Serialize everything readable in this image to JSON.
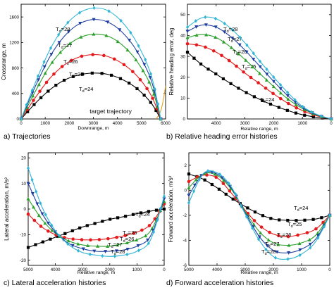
{
  "colors": {
    "Tf=24": "#000000",
    "Tf=25": "#e41a1c",
    "Tf=26": "#2ca02c",
    "Tf=27": "#1f3fa0",
    "Tf=28": "#33b5d6",
    "target": "#e6a11a"
  },
  "chart_data": [
    {
      "type": "line",
      "caption": "a) Trajectories",
      "xlabel": "Downrange, m",
      "ylabel": "Crossrange, m",
      "xlim": [
        0,
        6000
      ],
      "ylim": [
        0,
        1800
      ],
      "xticks": [
        "0",
        "1000",
        "2000",
        "3000",
        "4000",
        "5000",
        "6000"
      ],
      "yticks": [
        "0",
        "400",
        "800",
        "1200",
        "1600"
      ],
      "annotations": [
        "target trajectory"
      ],
      "target_trajectory": {
        "x": [
          5600,
          5700,
          5800,
          5880,
          5950,
          6000
        ],
        "y": [
          0,
          50,
          130,
          250,
          400,
          520
        ]
      },
      "series": [
        {
          "name": "T",
          "sub": "d",
          "suffix": "=24",
          "x": [
            0,
            600,
            1200,
            1800,
            2400,
            3000,
            3600,
            4200,
            4800,
            5400,
            5800
          ],
          "y": [
            0,
            250,
            460,
            610,
            690,
            720,
            700,
            620,
            480,
            250,
            0
          ]
        },
        {
          "name": "T",
          "sub": "d",
          "suffix": "=25",
          "x": [
            0,
            600,
            1200,
            1800,
            2400,
            3000,
            3600,
            4200,
            4800,
            5400,
            5800
          ],
          "y": [
            0,
            340,
            640,
            850,
            970,
            1010,
            980,
            870,
            680,
            370,
            0
          ]
        },
        {
          "name": "T",
          "sub": "d",
          "suffix": "=26",
          "x": [
            0,
            600,
            1200,
            1800,
            2400,
            3000,
            3600,
            4200,
            4800,
            5400,
            5800
          ],
          "y": [
            0,
            440,
            840,
            1110,
            1270,
            1330,
            1300,
            1160,
            910,
            510,
            0
          ]
        },
        {
          "name": "T",
          "sub": "d",
          "suffix": "=27",
          "x": [
            0,
            600,
            1200,
            1800,
            2400,
            3000,
            3600,
            4200,
            4800,
            5400,
            5800
          ],
          "y": [
            0,
            520,
            980,
            1300,
            1490,
            1560,
            1520,
            1360,
            1070,
            610,
            0
          ]
        },
        {
          "name": "T",
          "sub": "d",
          "suffix": "=28",
          "x": [
            0,
            600,
            1200,
            1800,
            2400,
            3000,
            3600,
            4200,
            4800,
            5400,
            5800
          ],
          "y": [
            0,
            580,
            1090,
            1450,
            1660,
            1740,
            1700,
            1520,
            1200,
            690,
            0
          ]
        }
      ]
    },
    {
      "type": "line",
      "caption": "b) Relative heading error histories",
      "xlabel": "Relative range, m",
      "ylabel": "Relative heading error, deg",
      "xlim": [
        5000,
        0
      ],
      "ylim": [
        0,
        55
      ],
      "xticks": [
        "4000",
        "3000",
        "2000",
        "1000",
        "0"
      ],
      "yticks": [
        "0",
        "10",
        "20",
        "30",
        "40",
        "50"
      ],
      "series": [
        {
          "name": "T",
          "sub": "d",
          "suffix": "=24",
          "x": [
            5000,
            4500,
            4000,
            3500,
            3000,
            2500,
            2000,
            1500,
            1000,
            500,
            0
          ],
          "y": [
            32,
            26,
            21.5,
            17,
            13,
            9.5,
            6.5,
            4,
            2,
            0.8,
            0
          ]
        },
        {
          "name": "T",
          "sub": "d",
          "suffix": "=25",
          "x": [
            5000,
            4500,
            4000,
            3500,
            3000,
            2500,
            2000,
            1500,
            1000,
            500,
            0
          ],
          "y": [
            36,
            35,
            32,
            27.5,
            22,
            17,
            12,
            7.5,
            4,
            1.5,
            0
          ]
        },
        {
          "name": "T",
          "sub": "d",
          "suffix": "=26",
          "x": [
            5000,
            4500,
            4000,
            3500,
            3000,
            2500,
            2000,
            1500,
            1000,
            500,
            0
          ],
          "y": [
            39,
            40.5,
            39,
            34.5,
            28.5,
            22,
            15.5,
            9.5,
            5,
            1.8,
            0
          ]
        },
        {
          "name": "T",
          "sub": "d",
          "suffix": "=27",
          "x": [
            5000,
            4500,
            4000,
            3500,
            3000,
            2500,
            2000,
            1500,
            1000,
            500,
            0
          ],
          "y": [
            42,
            45,
            44,
            39.5,
            33,
            25.5,
            18,
            11,
            5.5,
            2,
            0
          ]
        },
        {
          "name": "T",
          "sub": "d",
          "suffix": "=28",
          "x": [
            5000,
            4500,
            4000,
            3500,
            3000,
            2500,
            2000,
            1500,
            1000,
            500,
            0
          ],
          "y": [
            44,
            48.5,
            48,
            43.5,
            36.5,
            28,
            20,
            12.5,
            6,
            2.2,
            0
          ]
        }
      ]
    },
    {
      "type": "line",
      "caption": "c) Lateral acceleration histories",
      "xlabel": "Relative range, m",
      "ylabel": "Lateral acceleration, m/s²",
      "xlim": [
        5000,
        0
      ],
      "ylim": [
        -22,
        22
      ],
      "xticks": [
        "5000",
        "4000",
        "3000",
        "2000",
        "1000",
        "0"
      ],
      "yticks": [
        "-20",
        "-10",
        "0",
        "10",
        "20"
      ],
      "series": [
        {
          "name": "T",
          "sub": "d",
          "suffix": "=24",
          "x": [
            5000,
            4500,
            4000,
            3500,
            3000,
            2500,
            2000,
            1500,
            1000,
            500,
            0
          ],
          "y": [
            -15,
            -13,
            -11,
            -9,
            -7,
            -5.5,
            -4,
            -3,
            -1.8,
            -0.8,
            0
          ]
        },
        {
          "name": "T",
          "sub": "d",
          "suffix": "=25",
          "x": [
            5000,
            4500,
            4000,
            3500,
            3000,
            2500,
            2000,
            1500,
            1000,
            500,
            0
          ],
          "y": [
            -2,
            -7,
            -10,
            -11.5,
            -12,
            -12,
            -11.5,
            -10.5,
            -9,
            -6,
            2
          ]
        },
        {
          "name": "T",
          "sub": "d",
          "suffix": "=26",
          "x": [
            5000,
            4500,
            4000,
            3500,
            3000,
            2500,
            2000,
            1500,
            1000,
            500,
            0
          ],
          "y": [
            4,
            -4,
            -9.5,
            -12.5,
            -14,
            -14.5,
            -14.5,
            -13.5,
            -12,
            -8.5,
            3
          ]
        },
        {
          "name": "T",
          "sub": "d",
          "suffix": "=27",
          "x": [
            5000,
            4500,
            4000,
            3500,
            3000,
            2500,
            2000,
            1500,
            1000,
            500,
            0
          ],
          "y": [
            10,
            -1.5,
            -9,
            -13.5,
            -15.5,
            -16.5,
            -16.5,
            -16,
            -14.5,
            -10.5,
            4
          ]
        },
        {
          "name": "T",
          "sub": "d",
          "suffix": "=28",
          "x": [
            5000,
            4500,
            4000,
            3500,
            3000,
            2500,
            2000,
            1500,
            1000,
            500,
            0
          ],
          "y": [
            16,
            1,
            -8.5,
            -14,
            -17,
            -18,
            -18.5,
            -18,
            -16.5,
            -12,
            5
          ]
        }
      ]
    },
    {
      "type": "line",
      "caption": "d) Forward acceleration histories",
      "xlabel": "Relative range, m",
      "ylabel": "Forward acceleration, m/s²",
      "xlim": [
        5000,
        0
      ],
      "ylim": [
        -6,
        3
      ],
      "xticks": [
        "5000",
        "4000",
        "3000",
        "2000",
        "1000",
        "0"
      ],
      "yticks": [
        "-6",
        "-4",
        "-2",
        "0",
        "2"
      ],
      "series": [
        {
          "name": "T",
          "sub": "d",
          "suffix": "=24",
          "x": [
            5000,
            4500,
            4000,
            3500,
            3000,
            2500,
            2000,
            1500,
            1000,
            500,
            0
          ],
          "y": [
            1.3,
            0.9,
            0.2,
            -0.6,
            -1.3,
            -1.9,
            -2.3,
            -2.4,
            -2.4,
            -2.3,
            -2.0
          ]
        },
        {
          "name": "T",
          "sub": "d",
          "suffix": "=25",
          "x": [
            5000,
            4500,
            4000,
            3500,
            3000,
            2500,
            2000,
            1500,
            1000,
            500,
            0
          ],
          "y": [
            0.7,
            1.2,
            1.0,
            -0.2,
            -1.6,
            -2.8,
            -3.5,
            -3.7,
            -3.5,
            -3.1,
            -2.0
          ]
        },
        {
          "name": "T",
          "sub": "d",
          "suffix": "=26",
          "x": [
            5000,
            4500,
            4000,
            3500,
            3000,
            2500,
            2000,
            1500,
            1000,
            500,
            0
          ],
          "y": [
            0.2,
            1.3,
            1.2,
            0.1,
            -1.7,
            -3.3,
            -4.2,
            -4.4,
            -4.2,
            -3.6,
            -2.0
          ]
        },
        {
          "name": "T",
          "sub": "d",
          "suffix": "=27",
          "x": [
            5000,
            4500,
            4000,
            3500,
            3000,
            2500,
            2000,
            1500,
            1000,
            500,
            0
          ],
          "y": [
            -0.4,
            1.3,
            1.3,
            0.2,
            -1.8,
            -3.7,
            -4.8,
            -5.0,
            -4.7,
            -3.9,
            -2.0
          ]
        },
        {
          "name": "T",
          "sub": "d",
          "suffix": "=28",
          "x": [
            5000,
            4500,
            4000,
            3500,
            3000,
            2500,
            2000,
            1500,
            1000,
            500,
            0
          ],
          "y": [
            -1.0,
            1.3,
            1.4,
            0.3,
            -1.9,
            -4.0,
            -5.3,
            -5.5,
            -5.1,
            -4.1,
            -2.0
          ]
        }
      ]
    }
  ]
}
